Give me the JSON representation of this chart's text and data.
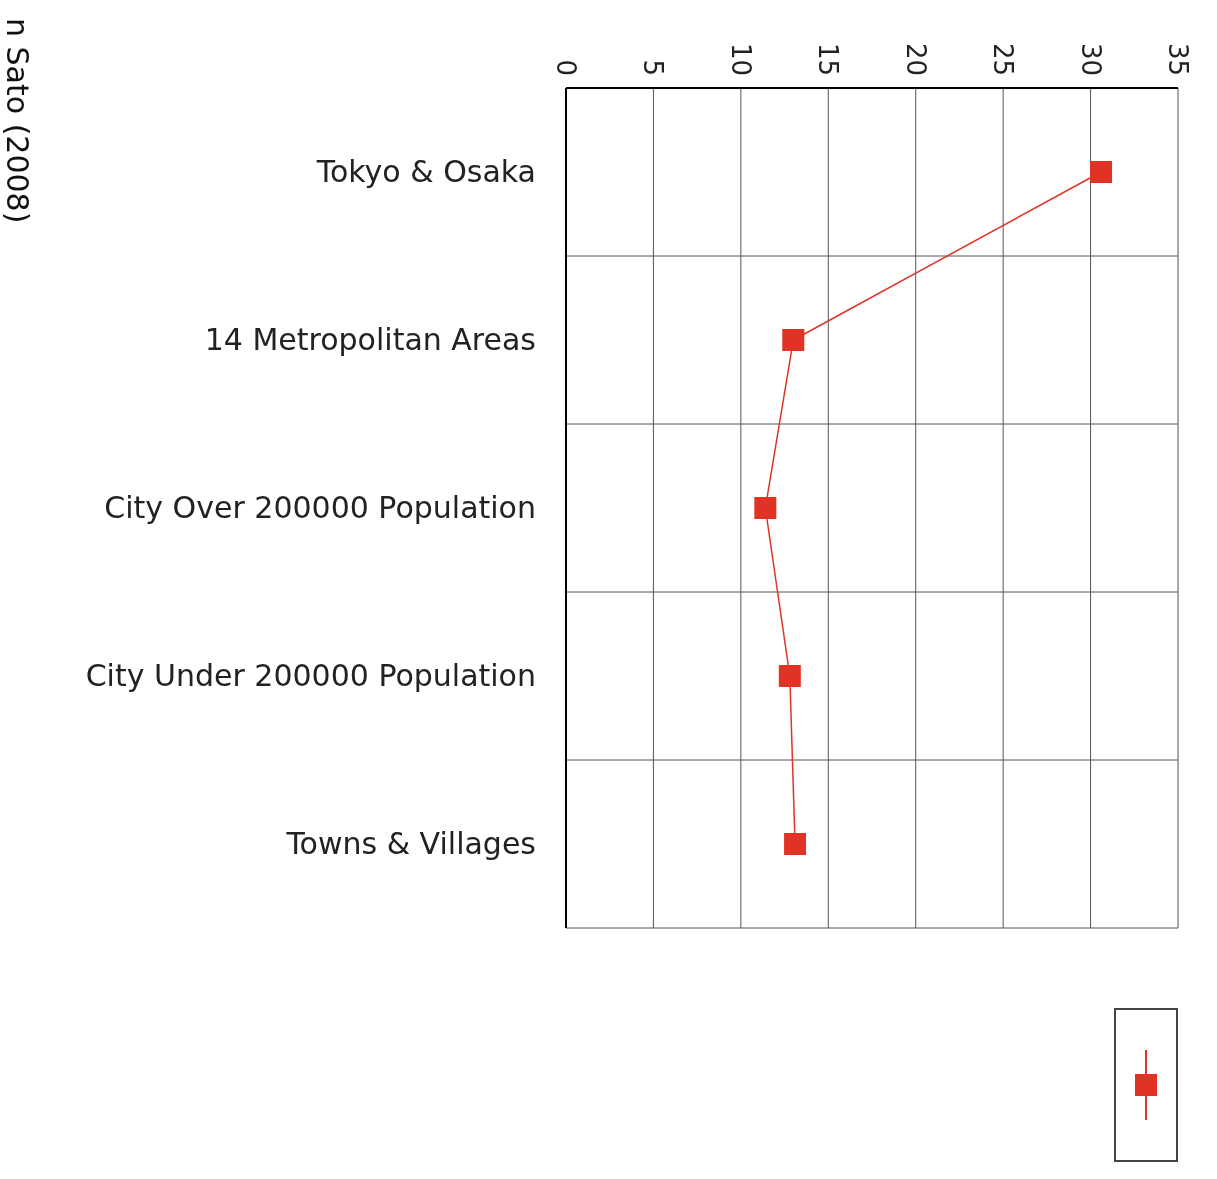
{
  "chart_data": {
    "type": "line",
    "categories": [
      "Tokyo & Osaka",
      "14 Metropolitan Areas",
      "City Over 200000 Population",
      "City Under 200000 Population",
      "Towns & Villages"
    ],
    "series": [
      {
        "color": "#e03325",
        "values": [
          30.6,
          13.0,
          11.4,
          12.8,
          13.1
        ]
      }
    ],
    "xlim": [
      0,
      35
    ],
    "xticks": [
      0,
      5,
      10,
      15,
      20,
      25,
      30,
      35
    ],
    "orientation": "horizontal",
    "grid": true,
    "marker": "square",
    "line_style": "solid",
    "annotations": [
      "n Sato (2008)"
    ]
  }
}
